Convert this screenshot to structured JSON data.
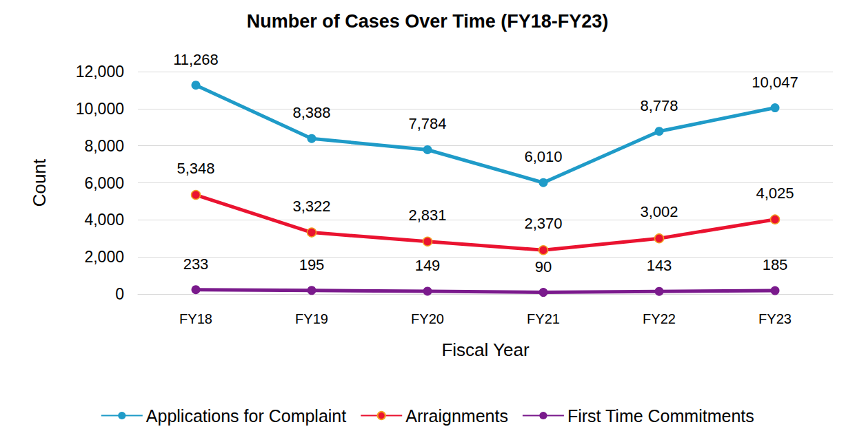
{
  "chart_data": {
    "type": "line",
    "title": "Number of Cases Over Time (FY18-FY23)",
    "x_label": "Fiscal Year",
    "y_label": "Count",
    "categories": [
      "FY18",
      "FY19",
      "FY20",
      "FY21",
      "FY22",
      "FY23"
    ],
    "series": [
      {
        "name": "Applications for Complaint",
        "color": "#1f9bc8",
        "marker": "circle",
        "line_style": "solid",
        "values": [
          11268,
          8388,
          7784,
          6010,
          8778,
          10047
        ],
        "value_labels": [
          "11,268",
          "8,388",
          "7,784",
          "6,010",
          "8,778",
          "10,047"
        ]
      },
      {
        "name": "Arraignments",
        "color": "#ea1330",
        "marker": "circle",
        "line_style": "solid",
        "values": [
          5348,
          3322,
          2831,
          2370,
          3002,
          4025
        ],
        "value_labels": [
          "5,348",
          "3,322",
          "2,831",
          "2,370",
          "3,002",
          "4,025"
        ]
      },
      {
        "name": "First Time Commitments",
        "color": "#7a1a8c",
        "marker": "circle",
        "line_style": "solid",
        "values": [
          233,
          195,
          149,
          90,
          143,
          185
        ]
      }
    ],
    "ylim": [
      0,
      12000
    ],
    "yticks": [
      0,
      {
        "value": 2000,
        "label": "2,000"
      },
      {
        "value": 4000,
        "label": "4,000"
      },
      {
        "value": 6000,
        "label": "6,000"
      },
      {
        "value": 8000,
        "label": "8,000"
      },
      {
        "value": 10000,
        "label": "10,000"
      },
      {
        "value": 12000,
        "label": "12,000"
      }
    ],
    "grid": true,
    "legend": "bottom",
    "data_labels": true
  }
}
